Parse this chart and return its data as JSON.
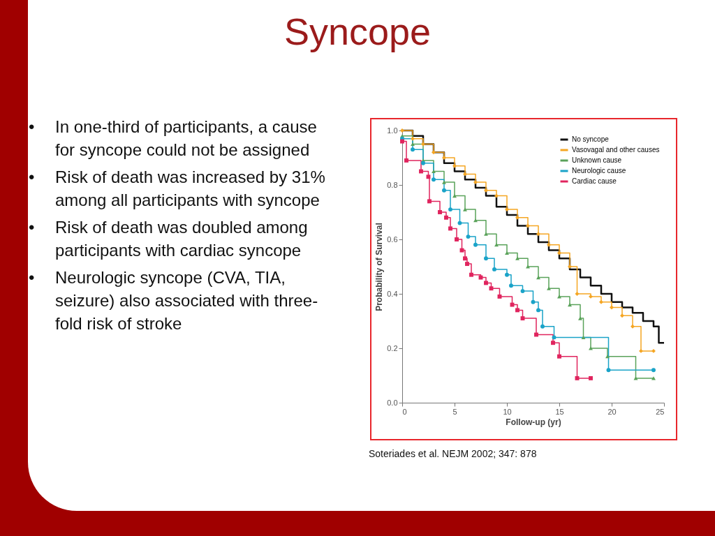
{
  "chart_data": {
    "type": "step",
    "title": "Syncope",
    "xlabel": "Follow-up (yr)",
    "ylabel": "Probability of Survival",
    "xlim": [
      0,
      25
    ],
    "xticks": [
      0,
      5,
      10,
      15,
      20,
      25
    ],
    "ylim": [
      0,
      1
    ],
    "yticks": [
      {
        "value": 0,
        "label": "0.0"
      },
      0.2,
      0.4,
      0.6,
      0.8,
      {
        "value": 1,
        "label": "1.0"
      }
    ],
    "grid": false,
    "legend": "top right",
    "series": [
      {
        "name": "No syncope",
        "color": "#111111",
        "marker": "none",
        "x": [
          0,
          1,
          2,
          3,
          4,
          5,
          6,
          7,
          8,
          9,
          10,
          11,
          12,
          13,
          14,
          15,
          16,
          17,
          18,
          19,
          20,
          21,
          22,
          23,
          24,
          24.5,
          25
        ],
        "values": [
          1.0,
          0.98,
          0.95,
          0.92,
          0.88,
          0.85,
          0.82,
          0.79,
          0.76,
          0.72,
          0.69,
          0.65,
          0.62,
          0.59,
          0.56,
          0.53,
          0.49,
          0.46,
          0.43,
          0.4,
          0.37,
          0.35,
          0.33,
          0.3,
          0.28,
          0.22,
          0.22
        ]
      },
      {
        "name": "Vasovagal and other causes",
        "color": "#f5a623",
        "marker": "diamond",
        "x": [
          0,
          1,
          2,
          3,
          4,
          5,
          6,
          7,
          8,
          9,
          10,
          11,
          12,
          13,
          14,
          15,
          16,
          16.7,
          18,
          19,
          20,
          21,
          22,
          22.8,
          24
        ],
        "values": [
          1.0,
          0.97,
          0.95,
          0.92,
          0.9,
          0.87,
          0.84,
          0.81,
          0.78,
          0.76,
          0.71,
          0.68,
          0.65,
          0.62,
          0.58,
          0.55,
          0.5,
          0.4,
          0.39,
          0.37,
          0.35,
          0.32,
          0.28,
          0.19,
          0.19
        ]
      },
      {
        "name": "Unknown cause",
        "color": "#5aa25a",
        "marker": "triangle",
        "x": [
          0,
          1,
          2,
          3,
          4,
          5,
          6,
          7,
          8,
          9,
          10,
          11,
          12,
          13,
          14,
          15,
          16,
          17,
          17.3,
          18,
          19.6,
          22.3,
          24
        ],
        "values": [
          0.98,
          0.95,
          0.89,
          0.85,
          0.81,
          0.76,
          0.71,
          0.67,
          0.62,
          0.58,
          0.55,
          0.53,
          0.5,
          0.46,
          0.42,
          0.39,
          0.36,
          0.31,
          0.24,
          0.2,
          0.17,
          0.09,
          0.09
        ]
      },
      {
        "name": "Neurologic cause",
        "color": "#1aa3c8",
        "marker": "circle",
        "x": [
          0,
          1,
          2,
          3,
          4,
          4.6,
          5.5,
          6.3,
          7,
          8,
          8.8,
          10,
          10.4,
          11.5,
          12.5,
          13,
          13.4,
          14.5,
          19.7,
          24
        ],
        "values": [
          0.97,
          0.93,
          0.88,
          0.82,
          0.78,
          0.71,
          0.66,
          0.61,
          0.58,
          0.53,
          0.49,
          0.47,
          0.43,
          0.41,
          0.37,
          0.34,
          0.28,
          0.24,
          0.12,
          0.12
        ]
      },
      {
        "name": "Cardiac cause",
        "color": "#e0245e",
        "marker": "square",
        "x": [
          0,
          0.4,
          1.8,
          2.5,
          2.6,
          3.6,
          4.2,
          4.6,
          5.2,
          5.7,
          6,
          6.2,
          6.6,
          7.5,
          8,
          8.5,
          9.3,
          10.5,
          11,
          11.5,
          12.8,
          14.4,
          15,
          16.7,
          18
        ],
        "values": [
          0.96,
          0.89,
          0.85,
          0.83,
          0.74,
          0.7,
          0.68,
          0.64,
          0.6,
          0.56,
          0.53,
          0.51,
          0.47,
          0.46,
          0.44,
          0.42,
          0.39,
          0.36,
          0.34,
          0.31,
          0.25,
          0.22,
          0.17,
          0.09,
          0.09
        ]
      }
    ],
    "annotations": [
      "•\tIn one-third of participants, a cause for syncope could not be assigned",
      "•\tRisk of death was increased by 31% among all participants with syncope",
      "•\tRisk of death was doubled among participants with cardiac syncope",
      "•\tNeurologic syncope (CVA, TIA, seizure) also associated with three-fold risk of stroke",
      "Soteriades et al. NEJM 2002; 347: 878"
    ]
  }
}
